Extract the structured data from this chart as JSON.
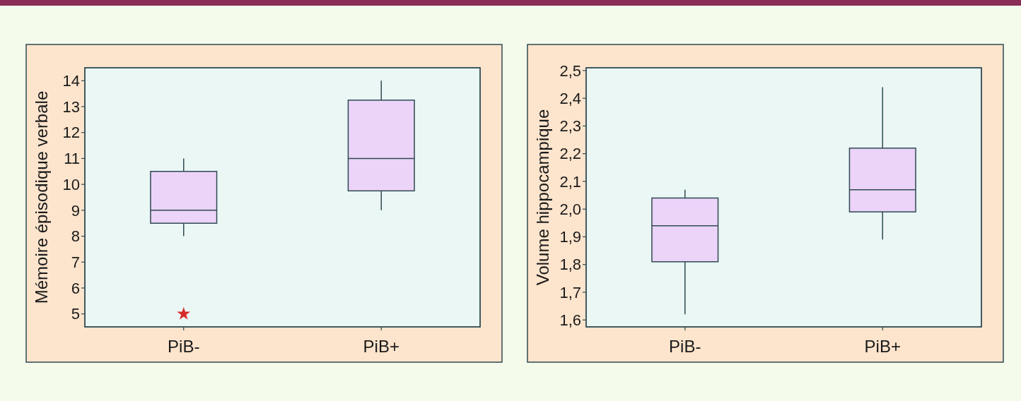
{
  "chart_data": [
    {
      "type": "box",
      "categories": [
        "PiB-",
        "PiB+"
      ],
      "ylabel": "Mémoire épisodique verbale",
      "ylim": [
        4.5,
        14.5
      ],
      "yticks": [
        5,
        6,
        7,
        8,
        9,
        10,
        11,
        12,
        13,
        14
      ],
      "color": "#ecd3f8",
      "marker": "star",
      "boxes": [
        {
          "low": 8,
          "q1": 8.5,
          "median": 9,
          "q3": 10.5,
          "high": 11,
          "outliers": [
            5
          ]
        },
        {
          "low": 9,
          "q1": 9.75,
          "median": 11,
          "q3": 13.25,
          "high": 14
        }
      ]
    },
    {
      "type": "box",
      "categories": [
        "PiB-",
        "PiB+"
      ],
      "ylabel": "Volume hippocampique",
      "ylim": [
        1.575,
        2.51
      ],
      "yticks": [
        {
          "value": 1.6,
          "label": "1,6"
        },
        {
          "value": 1.7,
          "label": "1,7"
        },
        {
          "value": 1.8,
          "label": "1,8"
        },
        {
          "value": 1.9,
          "label": "1,9"
        },
        {
          "value": 2.0,
          "label": "2,0"
        },
        {
          "value": 2.1,
          "label": "2,1"
        },
        {
          "value": 2.2,
          "label": "2,2"
        },
        {
          "value": 2.3,
          "label": "2,3"
        },
        {
          "value": 2.4,
          "label": "2,4"
        },
        {
          "value": 2.5,
          "label": "2,5"
        }
      ],
      "color": "#ecd3f8",
      "boxes": [
        {
          "low": 1.62,
          "q1": 1.81,
          "median": 1.94,
          "q3": 2.04,
          "high": 2.07
        },
        {
          "low": 1.89,
          "q1": 1.99,
          "median": 2.07,
          "q3": 2.22,
          "high": 2.44
        }
      ]
    }
  ]
}
